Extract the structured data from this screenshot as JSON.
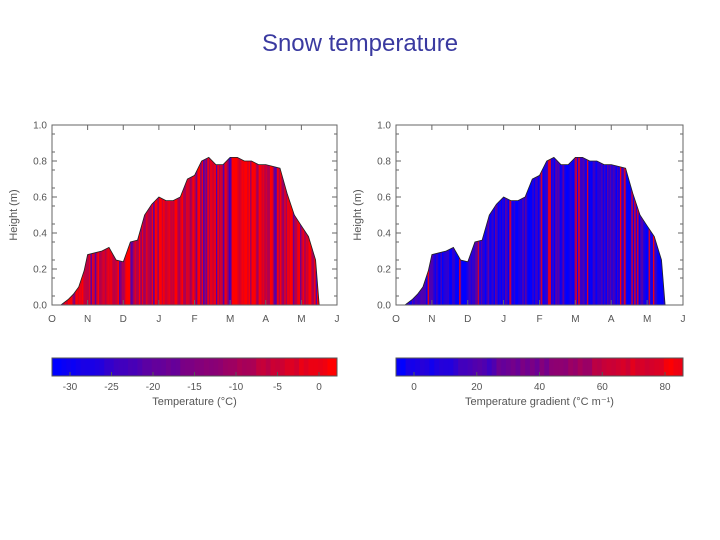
{
  "title": "Snow temperature",
  "chart_data": [
    {
      "type": "area",
      "name": "temperature",
      "xlabel": "",
      "ylabel": "Height (m)",
      "x_ticks": [
        "O",
        "N",
        "D",
        "J",
        "F",
        "M",
        "A",
        "M",
        "J"
      ],
      "y_ticks": [
        "0.0",
        "0.2",
        "0.4",
        "0.6",
        "0.8",
        "1.0"
      ],
      "ylim": [
        0,
        1.0
      ],
      "xlim": [
        0,
        8
      ],
      "profile": {
        "x": [
          0.0,
          0.25,
          0.45,
          0.6,
          0.75,
          0.9,
          1.0,
          1.2,
          1.4,
          1.6,
          1.8,
          2.0,
          2.2,
          2.4,
          2.6,
          2.8,
          3.0,
          3.2,
          3.4,
          3.6,
          3.8,
          4.0,
          4.2,
          4.4,
          4.6,
          4.8,
          5.0,
          5.2,
          5.4,
          5.6,
          5.8,
          6.0,
          6.2,
          6.4,
          6.6,
          6.8,
          7.0,
          7.2,
          7.4,
          7.5
        ],
        "y": [
          0.0,
          0.0,
          0.03,
          0.06,
          0.1,
          0.19,
          0.28,
          0.29,
          0.3,
          0.32,
          0.25,
          0.24,
          0.35,
          0.36,
          0.5,
          0.56,
          0.6,
          0.58,
          0.58,
          0.6,
          0.7,
          0.72,
          0.8,
          0.82,
          0.78,
          0.78,
          0.82,
          0.82,
          0.8,
          0.8,
          0.78,
          0.78,
          0.77,
          0.76,
          0.62,
          0.5,
          0.44,
          0.38,
          0.25,
          0.0
        ]
      },
      "colorbar": {
        "label": "Temperature (°C)",
        "ticks": [
          "-30",
          "-25",
          "-20",
          "-15",
          "-10",
          "-5",
          "0"
        ],
        "min": -30,
        "max": 0
      }
    },
    {
      "type": "area",
      "name": "temperature_gradient",
      "xlabel": "",
      "ylabel": "Height (m)",
      "x_ticks": [
        "O",
        "N",
        "D",
        "J",
        "F",
        "M",
        "A",
        "M",
        "J"
      ],
      "y_ticks": [
        "0.0",
        "0.2",
        "0.4",
        "0.6",
        "0.8",
        "1.0"
      ],
      "ylim": [
        0,
        1.0
      ],
      "xlim": [
        0,
        8
      ],
      "profile": {
        "x": [
          0.0,
          0.25,
          0.45,
          0.6,
          0.75,
          0.9,
          1.0,
          1.2,
          1.4,
          1.6,
          1.8,
          2.0,
          2.2,
          2.4,
          2.6,
          2.8,
          3.0,
          3.2,
          3.4,
          3.6,
          3.8,
          4.0,
          4.2,
          4.4,
          4.6,
          4.8,
          5.0,
          5.2,
          5.4,
          5.6,
          5.8,
          6.0,
          6.2,
          6.4,
          6.6,
          6.8,
          7.0,
          7.2,
          7.4,
          7.5
        ],
        "y": [
          0.0,
          0.0,
          0.03,
          0.06,
          0.1,
          0.19,
          0.28,
          0.29,
          0.3,
          0.32,
          0.25,
          0.24,
          0.35,
          0.36,
          0.5,
          0.56,
          0.6,
          0.58,
          0.58,
          0.6,
          0.7,
          0.72,
          0.8,
          0.82,
          0.78,
          0.78,
          0.82,
          0.82,
          0.8,
          0.8,
          0.78,
          0.78,
          0.77,
          0.76,
          0.62,
          0.5,
          0.44,
          0.38,
          0.25,
          0.0
        ]
      },
      "colorbar": {
        "label": "Temperature gradient (°C m⁻¹)",
        "ticks": [
          "0",
          "20",
          "40",
          "60",
          "80"
        ],
        "min": 0,
        "max": 80
      }
    }
  ],
  "colors": {
    "low": "#0000ff",
    "high": "#ff0000",
    "title": "#3a3aa0",
    "axis": "#555555"
  }
}
